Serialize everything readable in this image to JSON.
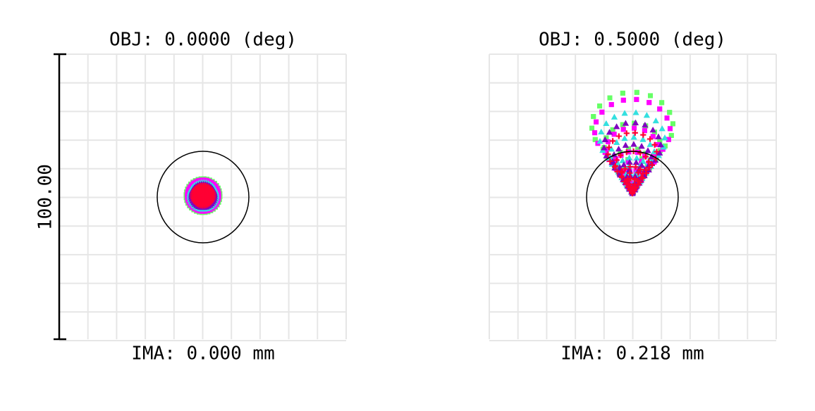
{
  "scale_label": "100.00",
  "panels": [
    {
      "title": "OBJ: 0.0000 (deg)",
      "image": "IMA: 0.000 mm"
    },
    {
      "title": "OBJ: 0.5000 (deg)",
      "image": "IMA: 0.218 mm"
    }
  ]
}
